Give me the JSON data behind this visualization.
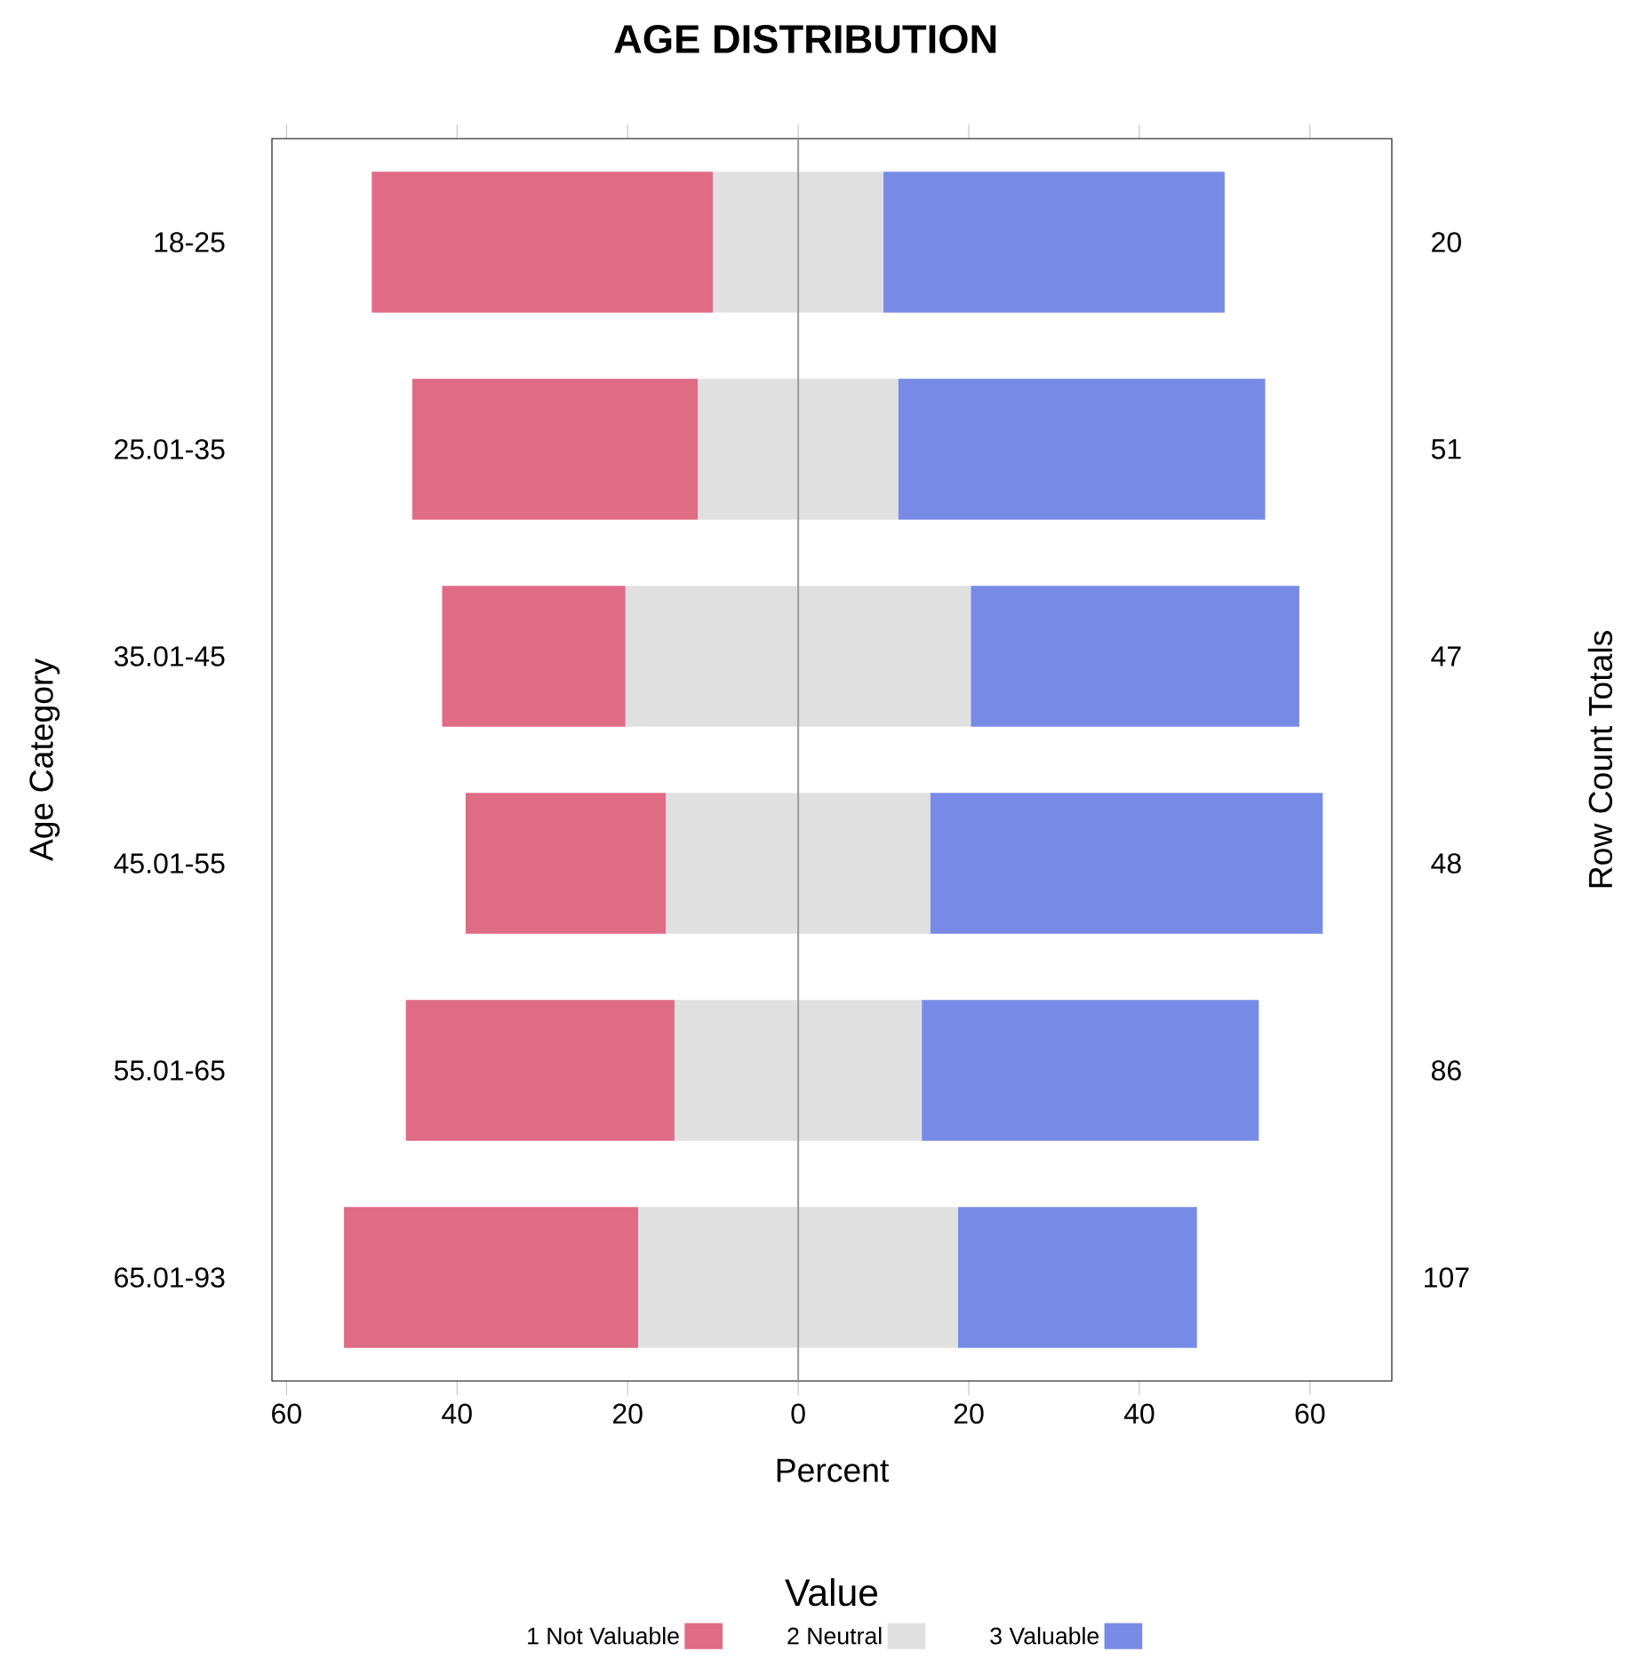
{
  "chart_data": {
    "type": "bar",
    "orientation": "horizontal",
    "title": "AGE DISTRIBUTION",
    "xlabel": "Percent",
    "ylabel": "Age Category",
    "legend_title": "Value",
    "legend": "bottom",
    "categories": [
      "18-25",
      "25.01-35",
      "35.01-45",
      "45.01-55",
      "55.01-65",
      "65.01-93"
    ],
    "series": [
      {
        "name": "1 Not Valuable",
        "color": "#e06b84",
        "base": [
          -50,
          -45.25,
          -41.75,
          -39,
          -46,
          -53.25
        ],
        "values": [
          40,
          33.5,
          21.5,
          23.5,
          31.5,
          34.5
        ]
      },
      {
        "name": "2 Neutral",
        "color": "#e0e0e0",
        "base": [
          -10,
          -11.75,
          -20.25,
          -15.5,
          -14.5,
          -18.75
        ],
        "values": [
          20,
          23.5,
          40.5,
          31,
          29,
          37.5
        ]
      },
      {
        "name": "3 Valuable",
        "color": "#778be6",
        "base": [
          10,
          11.75,
          20.25,
          15.5,
          14.5,
          18.75
        ],
        "values": [
          40,
          43,
          38.5,
          46,
          39.5,
          28
        ]
      }
    ],
    "annotations": [
      "20",
      "51",
      "47",
      "48",
      "86",
      "107",
      "Row Count Totals"
    ],
    "xlim": [
      -61.7,
      69.6
    ],
    "xticks": [
      {
        "value": -60,
        "label": "60"
      },
      {
        "value": -40,
        "label": "40"
      },
      {
        "value": -20,
        "label": "20"
      },
      0,
      20,
      40,
      60
    ],
    "ref_lines": [
      {
        "axis": "x",
        "value": 0,
        "color": "#a0a0a0"
      }
    ]
  }
}
